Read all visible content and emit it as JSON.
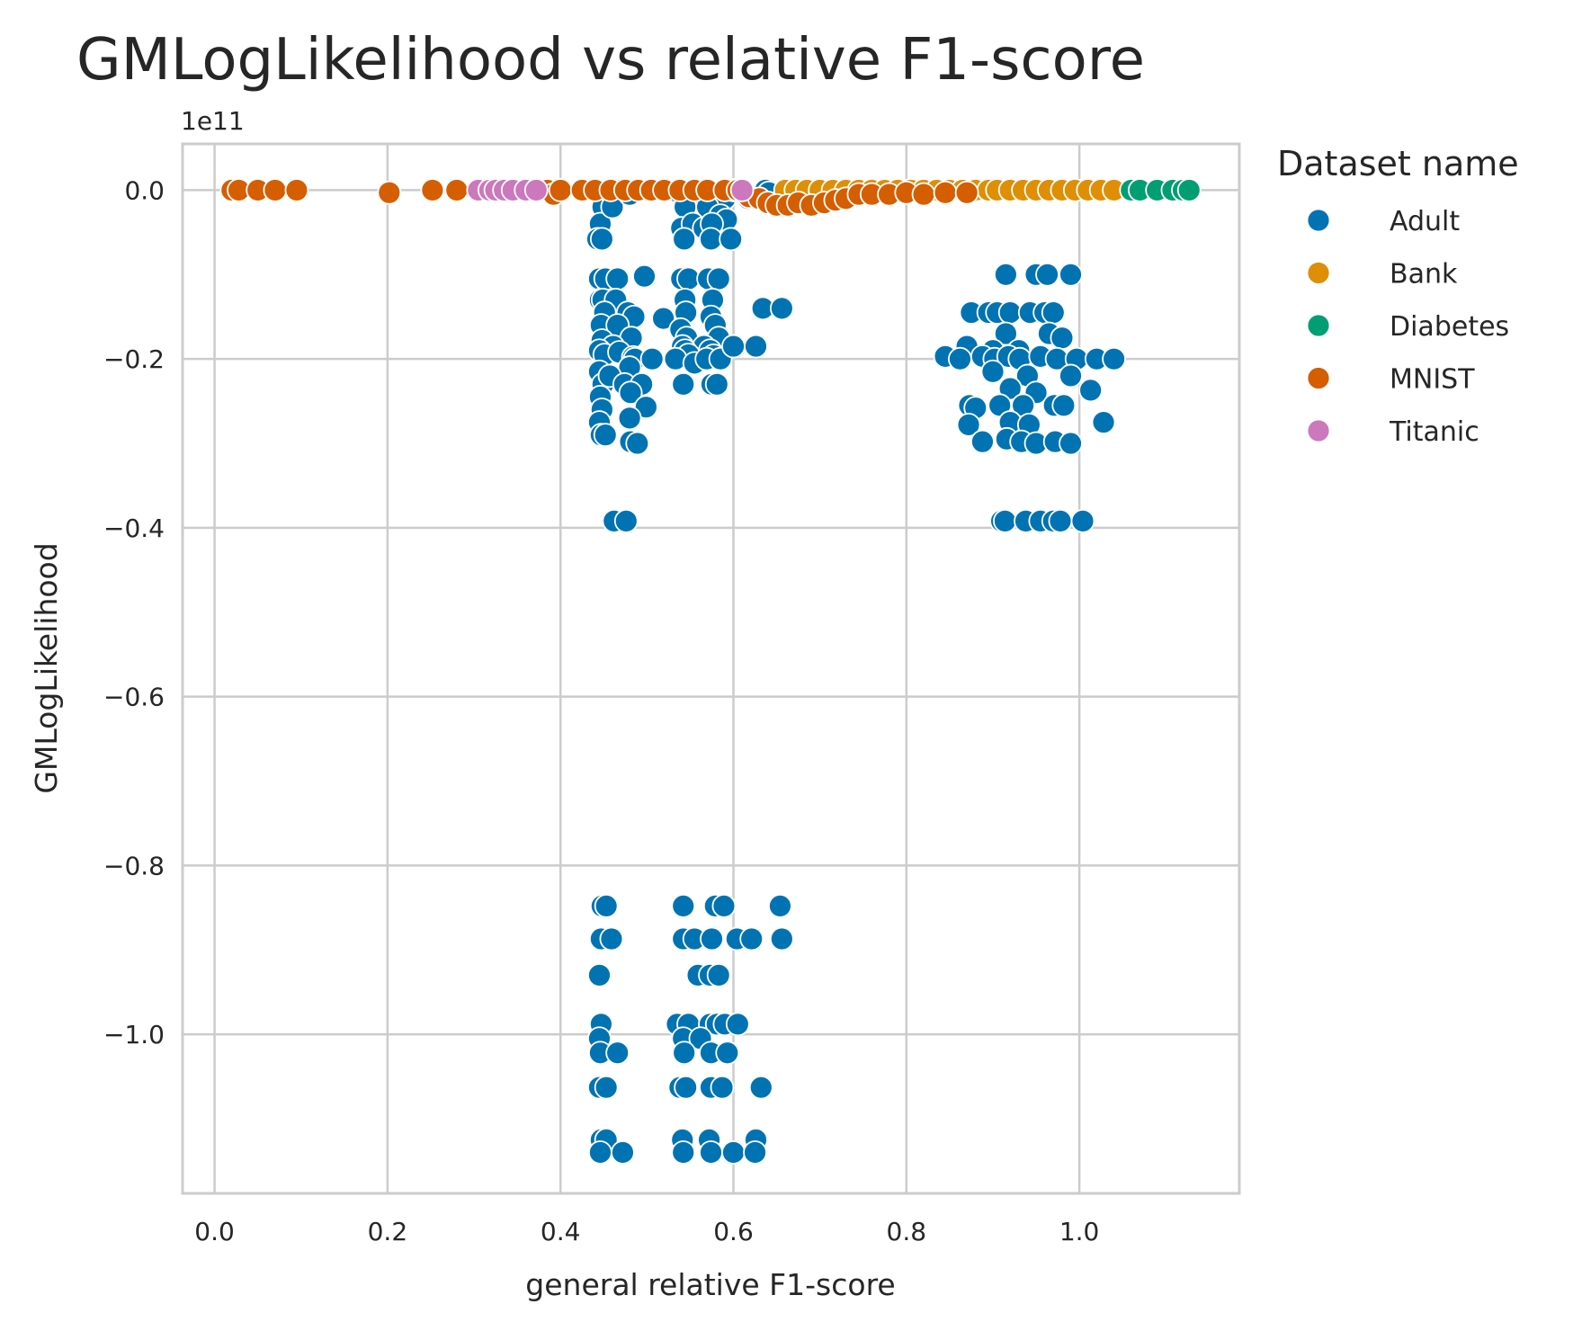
{
  "chart_data": {
    "type": "scatter",
    "title": "GMLogLikelihood vs relative F1-score",
    "xlabel": "general relative F1-score",
    "ylabel": "GMLogLikelihood",
    "offset_text": "1e11",
    "x_ticks": [
      "0.0",
      "0.2",
      "0.4",
      "0.6",
      "0.8",
      "1.0"
    ],
    "y_ticks": [
      "0.0",
      "−0.2",
      "−0.4",
      "−0.6",
      "−0.8",
      "−1.0"
    ],
    "x_tick_values": [
      0,
      0.2,
      0.4,
      0.6,
      0.8,
      1.0
    ],
    "y_tick_values": [
      0,
      -0.2,
      -0.4,
      -0.6,
      -0.8,
      -1.0
    ],
    "xlim": [
      -0.037,
      1.185
    ],
    "ylim": [
      -1.1885,
      0.0548
    ],
    "grid": true,
    "legend_title": "Dataset name",
    "legend_position": "outside upper right",
    "series": [
      {
        "name": "Adult",
        "color": "#0173b2",
        "points": [
          [
            0.447,
            0
          ],
          [
            0.451,
            -0.005
          ],
          [
            0.449,
            -0.02
          ],
          [
            0.446,
            -0.04
          ],
          [
            0.443,
            -0.058
          ],
          [
            0.448,
            -0.058
          ],
          [
            0.455,
            0
          ],
          [
            0.47,
            0
          ],
          [
            0.464,
            -0.01
          ],
          [
            0.46,
            -0.02
          ],
          [
            0.445,
            -0.105
          ],
          [
            0.452,
            -0.105
          ],
          [
            0.466,
            -0.105
          ],
          [
            0.497,
            -0.102
          ],
          [
            0.446,
            -0.13
          ],
          [
            0.449,
            -0.13
          ],
          [
            0.464,
            -0.13
          ],
          [
            0.451,
            -0.145
          ],
          [
            0.478,
            -0.145
          ],
          [
            0.485,
            -0.15
          ],
          [
            0.447,
            -0.16
          ],
          [
            0.466,
            -0.16
          ],
          [
            0.519,
            -0.152
          ],
          [
            0.448,
            -0.178
          ],
          [
            0.482,
            -0.175
          ],
          [
            0.461,
            -0.185
          ],
          [
            0.445,
            -0.19
          ],
          [
            0.451,
            -0.195
          ],
          [
            0.468,
            -0.192
          ],
          [
            0.484,
            -0.198
          ],
          [
            0.486,
            -0.2
          ],
          [
            0.506,
            -0.2
          ],
          [
            0.48,
            -0.21
          ],
          [
            0.445,
            -0.215
          ],
          [
            0.449,
            -0.23
          ],
          [
            0.457,
            -0.22
          ],
          [
            0.474,
            -0.23
          ],
          [
            0.494,
            -0.23
          ],
          [
            0.446,
            -0.245
          ],
          [
            0.481,
            -0.24
          ],
          [
            0.448,
            -0.26
          ],
          [
            0.499,
            -0.257
          ],
          [
            0.445,
            -0.275
          ],
          [
            0.48,
            -0.27
          ],
          [
            0.447,
            -0.29
          ],
          [
            0.452,
            -0.29
          ],
          [
            0.481,
            -0.298
          ],
          [
            0.489,
            -0.3
          ],
          [
            0.462,
            -0.392
          ],
          [
            0.476,
            -0.392
          ],
          [
            0.48,
            -0.005
          ],
          [
            0.497,
            0
          ],
          [
            0.536,
            -0.002
          ],
          [
            0.543,
            -0.005
          ],
          [
            0.553,
            0
          ],
          [
            0.562,
            -0.01
          ],
          [
            0.571,
            0
          ],
          [
            0.58,
            -0.005
          ],
          [
            0.588,
            0
          ],
          [
            0.59,
            -0.01
          ],
          [
            0.6,
            0
          ],
          [
            0.544,
            -0.02
          ],
          [
            0.57,
            -0.02
          ],
          [
            0.585,
            -0.03
          ],
          [
            0.592,
            -0.035
          ],
          [
            0.54,
            -0.045
          ],
          [
            0.553,
            -0.04
          ],
          [
            0.566,
            -0.045
          ],
          [
            0.575,
            -0.04
          ],
          [
            0.543,
            -0.058
          ],
          [
            0.574,
            -0.058
          ],
          [
            0.597,
            -0.058
          ],
          [
            0.54,
            -0.105
          ],
          [
            0.548,
            -0.105
          ],
          [
            0.571,
            -0.105
          ],
          [
            0.583,
            -0.105
          ],
          [
            0.544,
            -0.13
          ],
          [
            0.576,
            -0.13
          ],
          [
            0.545,
            -0.145
          ],
          [
            0.574,
            -0.15
          ],
          [
            0.539,
            -0.165
          ],
          [
            0.579,
            -0.16
          ],
          [
            0.546,
            -0.175
          ],
          [
            0.583,
            -0.175
          ],
          [
            0.541,
            -0.185
          ],
          [
            0.566,
            -0.185
          ],
          [
            0.544,
            -0.19
          ],
          [
            0.548,
            -0.195
          ],
          [
            0.573,
            -0.19
          ],
          [
            0.577,
            -0.196
          ],
          [
            0.533,
            -0.2
          ],
          [
            0.555,
            -0.205
          ],
          [
            0.569,
            -0.2
          ],
          [
            0.585,
            -0.2
          ],
          [
            0.542,
            -0.23
          ],
          [
            0.575,
            -0.23
          ],
          [
            0.581,
            -0.23
          ],
          [
            0.6,
            -0.185
          ],
          [
            0.626,
            -0.185
          ],
          [
            0.634,
            -0.14
          ],
          [
            0.656,
            -0.14
          ],
          [
            0.617,
            -0.01
          ],
          [
            0.637,
            0
          ],
          [
            0.641,
            -0.003
          ],
          [
            0.448,
            -0.848
          ],
          [
            0.453,
            -0.848
          ],
          [
            0.447,
            -0.887
          ],
          [
            0.459,
            -0.887
          ],
          [
            0.445,
            -0.93
          ],
          [
            0.447,
            -0.988
          ],
          [
            0.445,
            -1.005
          ],
          [
            0.446,
            -1.022
          ],
          [
            0.466,
            -1.022
          ],
          [
            0.445,
            -1.063
          ],
          [
            0.453,
            -1.063
          ],
          [
            0.447,
            -1.125
          ],
          [
            0.453,
            -1.125
          ],
          [
            0.446,
            -1.14
          ],
          [
            0.472,
            -1.14
          ],
          [
            0.542,
            -0.848
          ],
          [
            0.579,
            -0.848
          ],
          [
            0.589,
            -0.848
          ],
          [
            0.542,
            -0.887
          ],
          [
            0.555,
            -0.887
          ],
          [
            0.575,
            -0.887
          ],
          [
            0.604,
            -0.887
          ],
          [
            0.621,
            -0.887
          ],
          [
            0.559,
            -0.93
          ],
          [
            0.573,
            -0.93
          ],
          [
            0.583,
            -0.93
          ],
          [
            0.535,
            -0.988
          ],
          [
            0.548,
            -0.988
          ],
          [
            0.573,
            -0.988
          ],
          [
            0.581,
            -0.988
          ],
          [
            0.59,
            -0.988
          ],
          [
            0.605,
            -0.988
          ],
          [
            0.542,
            -1.005
          ],
          [
            0.562,
            -1.005
          ],
          [
            0.543,
            -1.022
          ],
          [
            0.574,
            -1.022
          ],
          [
            0.593,
            -1.022
          ],
          [
            0.538,
            -1.063
          ],
          [
            0.545,
            -1.063
          ],
          [
            0.574,
            -1.063
          ],
          [
            0.587,
            -1.063
          ],
          [
            0.632,
            -1.063
          ],
          [
            0.541,
            -1.125
          ],
          [
            0.572,
            -1.125
          ],
          [
            0.626,
            -1.125
          ],
          [
            0.542,
            -1.14
          ],
          [
            0.574,
            -1.14
          ],
          [
            0.6,
            -1.14
          ],
          [
            0.625,
            -1.14
          ],
          [
            0.654,
            -0.848
          ],
          [
            0.656,
            -0.887
          ],
          [
            0.915,
            -0.1
          ],
          [
            0.95,
            -0.1
          ],
          [
            0.963,
            -0.1
          ],
          [
            0.99,
            -0.1
          ],
          [
            0.875,
            -0.145
          ],
          [
            0.895,
            -0.145
          ],
          [
            0.905,
            -0.145
          ],
          [
            0.92,
            -0.145
          ],
          [
            0.943,
            -0.145
          ],
          [
            0.96,
            -0.145
          ],
          [
            0.97,
            -0.145
          ],
          [
            0.915,
            -0.17
          ],
          [
            0.965,
            -0.17
          ],
          [
            0.98,
            -0.175
          ],
          [
            0.87,
            -0.185
          ],
          [
            0.9,
            -0.19
          ],
          [
            0.93,
            -0.19
          ],
          [
            0.845,
            -0.197
          ],
          [
            0.862,
            -0.2
          ],
          [
            0.888,
            -0.197
          ],
          [
            0.902,
            -0.2
          ],
          [
            0.918,
            -0.197
          ],
          [
            0.931,
            -0.2
          ],
          [
            0.955,
            -0.197
          ],
          [
            0.974,
            -0.2
          ],
          [
            0.997,
            -0.2
          ],
          [
            1.02,
            -0.2
          ],
          [
            1.04,
            -0.2
          ],
          [
            0.9,
            -0.215
          ],
          [
            0.94,
            -0.22
          ],
          [
            0.99,
            -0.22
          ],
          [
            0.92,
            -0.235
          ],
          [
            0.95,
            -0.24
          ],
          [
            1.013,
            -0.237
          ],
          [
            0.873,
            -0.255
          ],
          [
            0.88,
            -0.258
          ],
          [
            0.908,
            -0.255
          ],
          [
            0.935,
            -0.255
          ],
          [
            0.971,
            -0.255
          ],
          [
            0.982,
            -0.255
          ],
          [
            0.872,
            -0.278
          ],
          [
            0.92,
            -0.275
          ],
          [
            0.942,
            -0.278
          ],
          [
            1.028,
            -0.275
          ],
          [
            0.888,
            -0.298
          ],
          [
            0.916,
            -0.295
          ],
          [
            0.933,
            -0.298
          ],
          [
            0.95,
            -0.3
          ],
          [
            0.972,
            -0.298
          ],
          [
            0.99,
            -0.3
          ],
          [
            0.91,
            -0.392
          ],
          [
            0.914,
            -0.392
          ],
          [
            0.938,
            -0.392
          ],
          [
            0.955,
            -0.392
          ],
          [
            0.97,
            -0.392
          ],
          [
            0.978,
            -0.392
          ],
          [
            1.004,
            -0.392
          ]
        ]
      },
      {
        "name": "Bank",
        "color": "#de8f05",
        "points": [
          [
            0.66,
            0
          ],
          [
            0.672,
            0
          ],
          [
            0.685,
            0
          ],
          [
            0.7,
            0
          ],
          [
            0.715,
            0
          ],
          [
            0.73,
            0
          ],
          [
            0.745,
            0
          ],
          [
            0.76,
            0
          ],
          [
            0.775,
            0
          ],
          [
            0.79,
            0
          ],
          [
            0.805,
            0
          ],
          [
            0.82,
            0
          ],
          [
            0.835,
            0
          ],
          [
            0.85,
            0
          ],
          [
            0.865,
            0
          ],
          [
            0.88,
            0
          ],
          [
            0.895,
            0
          ],
          [
            0.905,
            0
          ],
          [
            0.92,
            0
          ],
          [
            0.935,
            0
          ],
          [
            0.95,
            0
          ],
          [
            0.965,
            0
          ],
          [
            0.98,
            0
          ],
          [
            0.995,
            0
          ],
          [
            1.01,
            0
          ],
          [
            1.025,
            0
          ],
          [
            1.04,
            0
          ],
          [
            1.09,
            0
          ]
        ]
      },
      {
        "name": "Diabetes",
        "color": "#029e73",
        "points": [
          [
            1.06,
            0
          ],
          [
            1.07,
            0
          ],
          [
            1.09,
            0
          ],
          [
            1.108,
            0
          ],
          [
            1.12,
            0
          ],
          [
            1.127,
            0
          ]
        ]
      },
      {
        "name": "MNIST",
        "color": "#d55e00",
        "points": [
          [
            0.02,
            0
          ],
          [
            0.028,
            0
          ],
          [
            0.05,
            0
          ],
          [
            0.07,
            0
          ],
          [
            0.095,
            0
          ],
          [
            0.202,
            -0.003
          ],
          [
            0.252,
            0
          ],
          [
            0.28,
            0
          ],
          [
            0.385,
            0
          ],
          [
            0.392,
            -0.005
          ],
          [
            0.4,
            0
          ],
          [
            0.425,
            0
          ],
          [
            0.44,
            0
          ],
          [
            0.458,
            0
          ],
          [
            0.475,
            0
          ],
          [
            0.49,
            0
          ],
          [
            0.505,
            0
          ],
          [
            0.52,
            0
          ],
          [
            0.538,
            0
          ],
          [
            0.555,
            0
          ],
          [
            0.57,
            0
          ],
          [
            0.59,
            0
          ],
          [
            0.605,
            0
          ],
          [
            0.618,
            -0.008
          ],
          [
            0.63,
            -0.01
          ],
          [
            0.64,
            -0.015
          ],
          [
            0.65,
            -0.018
          ],
          [
            0.663,
            -0.018
          ],
          [
            0.675,
            -0.015
          ],
          [
            0.69,
            -0.018
          ],
          [
            0.705,
            -0.015
          ],
          [
            0.718,
            -0.012
          ],
          [
            0.73,
            -0.01
          ],
          [
            0.745,
            -0.005
          ],
          [
            0.76,
            -0.005
          ],
          [
            0.78,
            -0.005
          ],
          [
            0.8,
            -0.003
          ],
          [
            0.82,
            -0.005
          ],
          [
            0.845,
            -0.003
          ],
          [
            0.87,
            -0.003
          ]
        ]
      },
      {
        "name": "Titanic",
        "color": "#cc78bc",
        "points": [
          [
            0.305,
            0
          ],
          [
            0.318,
            0
          ],
          [
            0.325,
            0
          ],
          [
            0.335,
            0
          ],
          [
            0.345,
            0
          ],
          [
            0.36,
            0
          ],
          [
            0.372,
            0
          ],
          [
            0.61,
            0
          ]
        ]
      }
    ]
  }
}
